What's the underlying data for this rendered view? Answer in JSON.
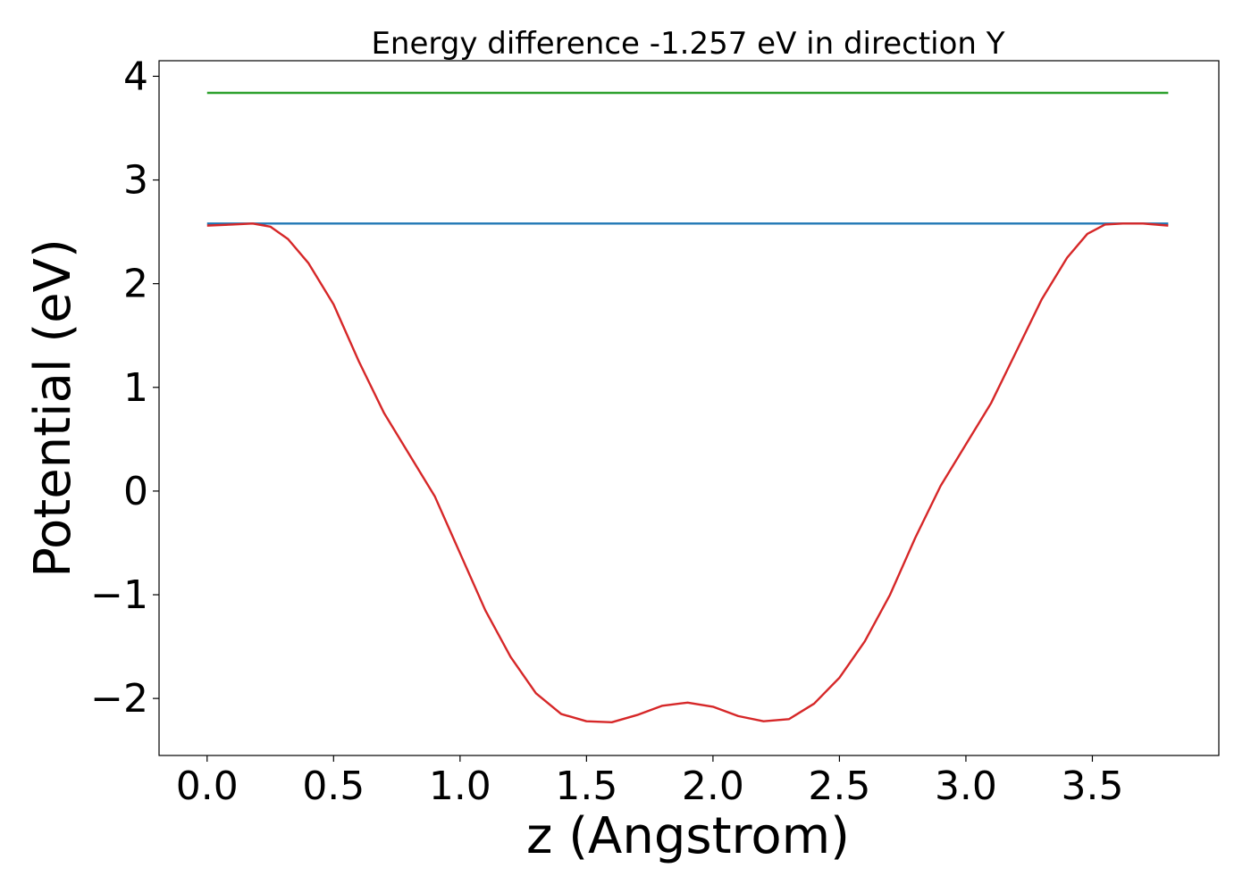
{
  "chart_data": {
    "type": "line",
    "title": "Energy difference -1.257 eV in direction Y",
    "xlabel": "z (Angstrom)",
    "ylabel": "Potential (eV)",
    "xlim": [
      -0.19,
      4.0
    ],
    "ylim": [
      -2.55,
      4.15
    ],
    "xticks": [
      0.0,
      0.5,
      1.0,
      1.5,
      2.0,
      2.5,
      3.0,
      3.5
    ],
    "xtick_labels": [
      "0.0",
      "0.5",
      "1.0",
      "1.5",
      "2.0",
      "2.5",
      "3.0",
      "3.5"
    ],
    "yticks": [
      -2,
      -1,
      0,
      1,
      2,
      3,
      4
    ],
    "ytick_labels": [
      "−2",
      "−1",
      "0",
      "1",
      "2",
      "3",
      "4"
    ],
    "grid": false,
    "series": [
      {
        "color": "#2ca02c",
        "x": [
          0.0,
          3.8
        ],
        "y": [
          3.84,
          3.84
        ]
      },
      {
        "color": "#1f77b4",
        "x": [
          0.0,
          3.8
        ],
        "y": [
          2.58,
          2.58
        ]
      },
      {
        "color": "#d62728",
        "x": [
          0.0,
          0.1,
          0.18,
          0.25,
          0.32,
          0.4,
          0.5,
          0.6,
          0.7,
          0.8,
          0.9,
          1.0,
          1.1,
          1.2,
          1.3,
          1.4,
          1.5,
          1.6,
          1.7,
          1.8,
          1.9,
          2.0,
          2.1,
          2.2,
          2.3,
          2.4,
          2.5,
          2.6,
          2.7,
          2.8,
          2.9,
          3.0,
          3.1,
          3.2,
          3.3,
          3.4,
          3.48,
          3.55,
          3.62,
          3.7,
          3.8
        ],
        "y": [
          2.56,
          2.57,
          2.58,
          2.55,
          2.43,
          2.2,
          1.8,
          1.25,
          0.75,
          0.35,
          -0.05,
          -0.6,
          -1.15,
          -1.6,
          -1.95,
          -2.15,
          -2.22,
          -2.23,
          -2.16,
          -2.07,
          -2.04,
          -2.08,
          -2.17,
          -2.22,
          -2.2,
          -2.05,
          -1.8,
          -1.45,
          -1.0,
          -0.45,
          0.05,
          0.45,
          0.85,
          1.35,
          1.85,
          2.25,
          2.48,
          2.57,
          2.58,
          2.58,
          2.56
        ]
      }
    ]
  }
}
